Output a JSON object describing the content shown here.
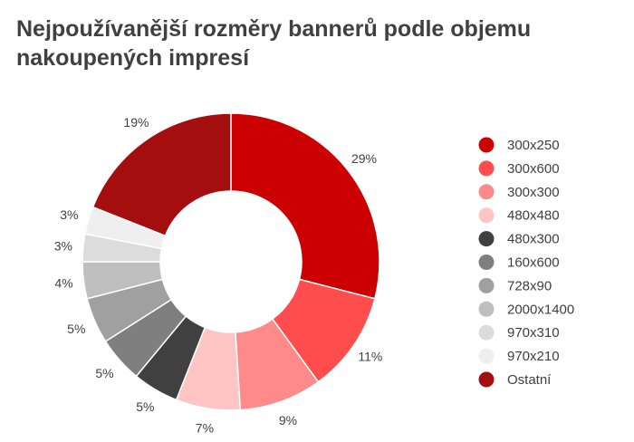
{
  "chart_data": {
    "type": "pie",
    "title": "Nejpoužívanější rozměry bannerů podle objemu nakoupených impresí",
    "categories": [
      "300x250",
      "300x600",
      "300x300",
      "480x480",
      "480x300",
      "160x600",
      "728x90",
      "2000x1400",
      "970x310",
      "970x210",
      "Ostatní"
    ],
    "values": [
      29,
      11,
      9,
      7,
      5,
      5,
      5,
      4,
      3,
      3,
      19
    ],
    "data_labels": [
      "29%",
      "11%",
      "9%",
      "7%",
      "5%",
      "5%",
      "5%",
      "4%",
      "3%",
      "3%",
      "19%"
    ],
    "colors": [
      "#cc0000",
      "#ff4d4d",
      "#ff8a8a",
      "#ffc4c4",
      "#404040",
      "#7f7f7f",
      "#a0a0a0",
      "#bfbfbf",
      "#dcdcdc",
      "#efefef",
      "#a50e0e"
    ],
    "donut": true,
    "legend": "right"
  }
}
